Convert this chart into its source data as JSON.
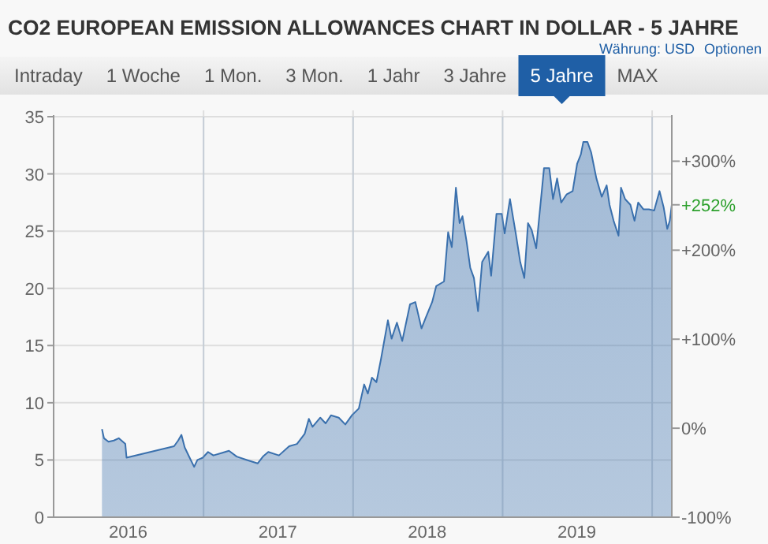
{
  "chart_data": {
    "type": "area",
    "title": "CO2 EUROPEAN EMISSION ALLOWANCES CHART IN DOLLAR - 5 JAHRE",
    "x": [
      "2016-04-28",
      "2016-05-03",
      "2016-05-14",
      "2016-05-27",
      "2016-06-08",
      "2016-06-24",
      "2016-06-27",
      "2016-10-21",
      "2016-10-31",
      "2016-11-08",
      "2016-11-16",
      "2016-11-28",
      "2016-12-09",
      "2016-12-17",
      "2016-12-30",
      "2017-01-12",
      "2017-01-25",
      "2017-02-13",
      "2017-03-04",
      "2017-03-23",
      "2017-04-17",
      "2017-05-13",
      "2017-05-26",
      "2017-06-08",
      "2017-07-04",
      "2017-07-29",
      "2017-08-17",
      "2017-09-05",
      "2017-09-15",
      "2017-09-24",
      "2017-10-13",
      "2017-10-26",
      "2017-11-08",
      "2017-11-27",
      "2017-12-13",
      "2017-12-29",
      "2018-01-15",
      "2018-01-28",
      "2018-02-06",
      "2018-02-16",
      "2018-02-27",
      "2018-03-10",
      "2018-03-27",
      "2018-04-05",
      "2018-04-18",
      "2018-05-01",
      "2018-05-20",
      "2018-06-02",
      "2018-06-17",
      "2018-06-27",
      "2018-07-13",
      "2018-07-23",
      "2018-08-11",
      "2018-08-21",
      "2018-08-30",
      "2018-09-09",
      "2018-09-18",
      "2018-09-25",
      "2018-10-05",
      "2018-10-14",
      "2018-10-23",
      "2018-11-02",
      "2018-11-12",
      "2018-11-27",
      "2018-12-04",
      "2018-12-17",
      "2018-12-30",
      "2019-01-06",
      "2019-01-19",
      "2019-02-03",
      "2019-02-13",
      "2019-02-23",
      "2019-03-04",
      "2019-03-13",
      "2019-03-24",
      "2019-04-12",
      "2019-04-25",
      "2019-05-04",
      "2019-05-14",
      "2019-05-24",
      "2019-06-06",
      "2019-06-21",
      "2019-07-02",
      "2019-07-11",
      "2019-07-17",
      "2019-07-27",
      "2019-08-05",
      "2019-08-18",
      "2019-08-31",
      "2019-09-12",
      "2019-09-19",
      "2019-09-29",
      "2019-10-11",
      "2019-10-17",
      "2019-10-27",
      "2019-11-09",
      "2019-11-19",
      "2019-11-28",
      "2019-12-11",
      "2019-12-24",
      "2020-01-06",
      "2020-01-19",
      "2020-01-29",
      "2020-02-07",
      "2020-02-13",
      "2020-02-18"
    ],
    "series": [
      {
        "color": "#3a70ad",
        "values": [
          7.7,
          6.9,
          6.6,
          6.7,
          6.9,
          6.4,
          5.2,
          6.2,
          6.7,
          7.2,
          6.1,
          5.2,
          4.4,
          5.0,
          5.2,
          5.7,
          5.4,
          5.6,
          5.8,
          5.3,
          5.0,
          4.7,
          5.3,
          5.7,
          5.4,
          6.2,
          6.4,
          7.3,
          8.6,
          7.9,
          8.7,
          8.2,
          8.9,
          8.7,
          8.1,
          8.9,
          9.5,
          11.6,
          10.8,
          12.2,
          11.8,
          13.8,
          17.2,
          15.6,
          17.0,
          15.4,
          18.6,
          18.8,
          16.5,
          17.4,
          18.8,
          20.2,
          20.6,
          24.9,
          23.6,
          28.8,
          25.7,
          26.3,
          24.1,
          21.8,
          20.9,
          18.0,
          22.3,
          23.2,
          21.1,
          26.5,
          26.5,
          24.8,
          27.8,
          24.6,
          22.3,
          20.9,
          25.7,
          25.1,
          23.5,
          30.5,
          30.5,
          27.8,
          29.6,
          27.5,
          28.2,
          28.5,
          30.9,
          31.7,
          32.8,
          32.8,
          31.9,
          29.6,
          28.0,
          29.0,
          27.3,
          25.9,
          24.6,
          28.8,
          27.8,
          27.3,
          25.9,
          27.5,
          26.9,
          26.9,
          26.8,
          28.5,
          27.1,
          25.2,
          25.9,
          27.3
        ]
      }
    ],
    "xlim": [
      "2016-01-01",
      "2020-02-18"
    ],
    "xticks": [
      {
        "value": "2016-07-01",
        "label": "2016"
      },
      {
        "value": "2017-01-01",
        "label": null
      },
      {
        "value": "2017-07-01",
        "label": "2017"
      },
      {
        "value": "2018-01-01",
        "label": null
      },
      {
        "value": "2018-07-01",
        "label": "2018"
      },
      {
        "value": "2019-01-01",
        "label": null
      },
      {
        "value": "2019-07-01",
        "label": "2019"
      },
      {
        "value": "2020-01-01",
        "label": null
      }
    ],
    "ylim": [
      0,
      35
    ],
    "yticks": [
      0,
      5,
      10,
      15,
      20,
      25,
      30,
      35
    ],
    "y2lim": [
      -100,
      350
    ],
    "y2ticks": [
      {
        "value": -100,
        "label": "-100%"
      },
      {
        "value": 0,
        "label": "0%"
      },
      {
        "value": 100,
        "label": "+100%"
      },
      {
        "value": 200,
        "label": "+200%"
      },
      {
        "value": 300,
        "label": "+300%"
      }
    ],
    "grid": true,
    "annotations": [
      "Intraday",
      "1 Woche",
      "1 Mon.",
      "3 Mon.",
      "1 Jahr",
      "3 Jahre",
      "5 Jahre",
      "MAX",
      "Währung: USD",
      "Optionen",
      {
        "text": "+252%",
        "x": "2020-02-18",
        "y": 27.3
      }
    ]
  }
}
